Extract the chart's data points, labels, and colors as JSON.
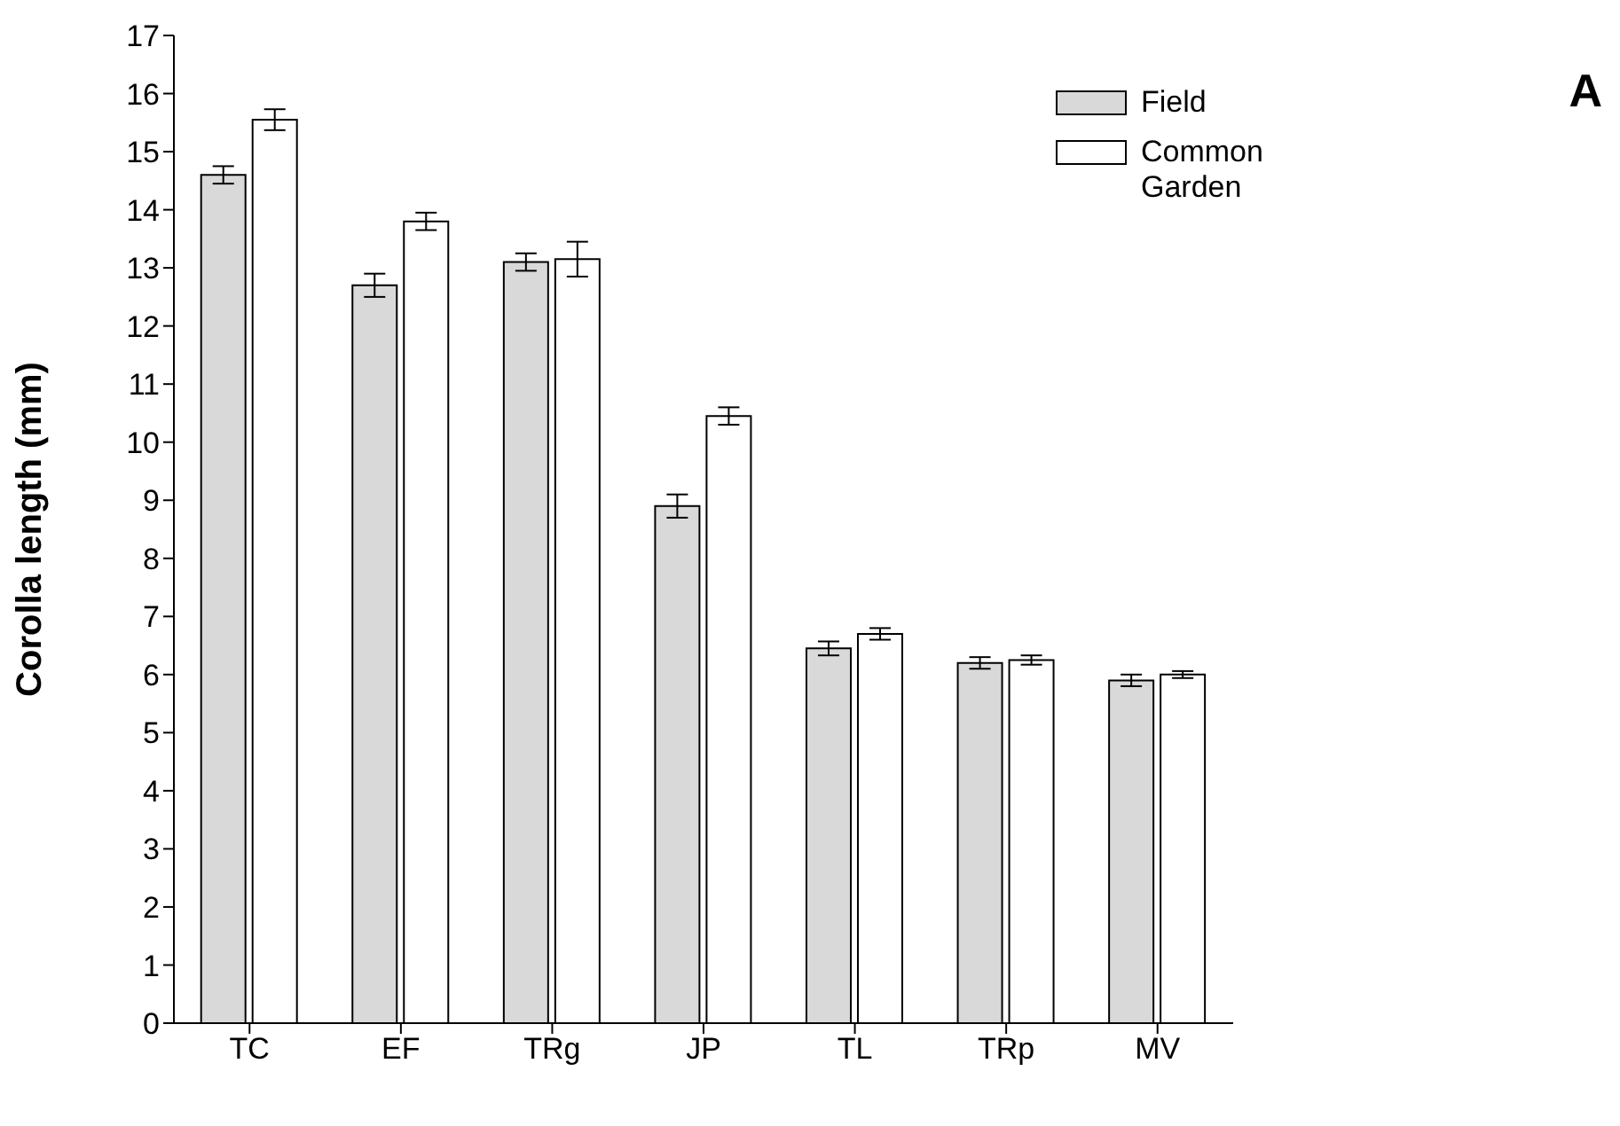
{
  "chart_data": {
    "type": "bar",
    "ylabel": "Corolla length (mm)",
    "annotations": [
      "A"
    ],
    "categories": [
      "TC",
      "EF",
      "TRg",
      "JP",
      "TL",
      "TRp",
      "MV"
    ],
    "series": [
      {
        "name": "Field",
        "color": "#d9d9d9",
        "values": [
          14.6,
          12.7,
          13.1,
          8.9,
          6.45,
          6.2,
          5.9
        ],
        "errors": [
          0.15,
          0.2,
          0.15,
          0.2,
          0.12,
          0.1,
          0.1
        ]
      },
      {
        "name": "Common Garden",
        "color": "#ffffff",
        "values": [
          15.55,
          13.8,
          13.15,
          10.45,
          6.7,
          6.25,
          6.0
        ],
        "errors": [
          0.18,
          0.15,
          0.3,
          0.15,
          0.1,
          0.08,
          0.06
        ]
      }
    ],
    "ylim": [
      0,
      17
    ],
    "yticks": [
      0,
      1,
      2,
      3,
      4,
      5,
      6,
      7,
      8,
      9,
      10,
      11,
      12,
      13,
      14,
      15,
      16,
      17
    ],
    "grid": false,
    "legend": "top right"
  }
}
